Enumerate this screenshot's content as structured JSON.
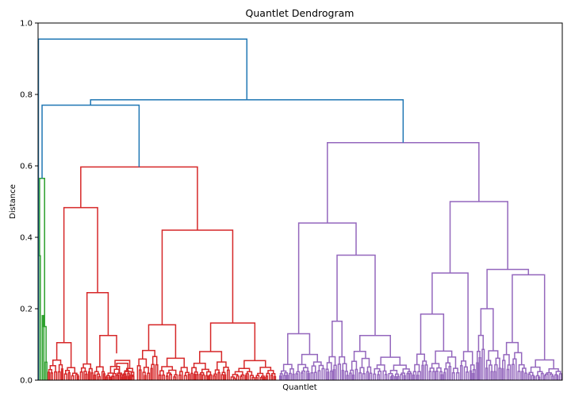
{
  "chart_data": {
    "type": "dendrogram",
    "title": "Quantlet Dendrogram",
    "xlabel": "Quantlet",
    "ylabel": "Distance",
    "ylim": [
      0,
      1.0
    ],
    "yticks": [
      "0.0",
      "0.2",
      "0.4",
      "0.6",
      "0.8",
      "1.0"
    ],
    "xticks": [],
    "grid": false,
    "legend": "none",
    "colors": {
      "link_above_threshold": "#1f77b4",
      "cluster_green": "#2ca02c",
      "cluster_red": "#d62728",
      "cluster_purple": "#9467bd"
    },
    "top_merges": [
      {
        "height": 0.955,
        "color": "#1f77b4",
        "joins": [
          "leftmost leaf group (x≈0.0)",
          "main tree"
        ]
      },
      {
        "height": 0.785,
        "color": "#1f77b4",
        "joins": [
          "green+red group",
          "purple cluster"
        ]
      },
      {
        "height": 0.77,
        "color": "#1f77b4",
        "joins": [
          "green cluster",
          "red cluster"
        ]
      },
      {
        "height": 0.665,
        "color": "#9467bd",
        "joins": [
          "purple-left",
          "purple-right"
        ]
      },
      {
        "height": 0.597,
        "color": "#d62728",
        "joins": [
          "red-left",
          "red-right"
        ]
      },
      {
        "height": 0.565,
        "color": "#2ca02c",
        "joins": [
          "green sub",
          "green sub"
        ]
      },
      {
        "height": 0.5,
        "color": "#9467bd",
        "joins": [
          "purple-right-a",
          "purple-right-b"
        ]
      },
      {
        "height": 0.483,
        "color": "#d62728",
        "joins": [
          "red-left-a",
          "red-left-b"
        ]
      },
      {
        "height": 0.44,
        "color": "#9467bd",
        "joins": [
          "purple-left-a",
          "purple-left-b"
        ]
      },
      {
        "height": 0.42,
        "color": "#d62728",
        "joins": [
          "red-right-a",
          "red-right-b"
        ]
      },
      {
        "height": 0.35,
        "color": "#9467bd",
        "joins": [
          "purple-left-b1",
          "purple-left-b2"
        ]
      },
      {
        "height": 0.31,
        "color": "#9467bd",
        "joins": [
          "purple-right-b1",
          "purple-right-b2"
        ]
      },
      {
        "height": 0.3,
        "color": "#9467bd",
        "joins": [
          "purple-right-a1",
          "purple-right-a2"
        ]
      },
      {
        "height": 0.245,
        "color": "#d62728",
        "joins": [
          "red-left-b1",
          "red-left-b2"
        ]
      }
    ]
  }
}
